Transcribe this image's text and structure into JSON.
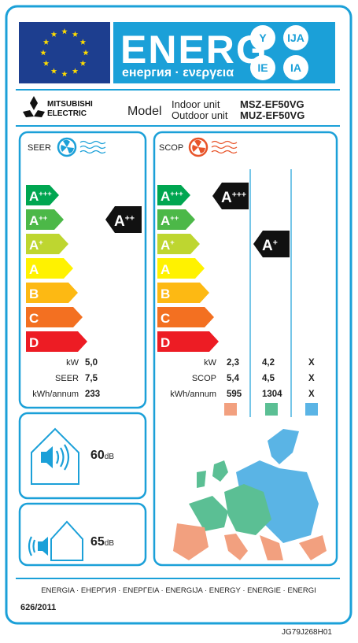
{
  "header": {
    "title": "ENERG",
    "subtitle": "енергия · ενεργεια",
    "badges": [
      "Y",
      "IJA",
      "IE",
      "IA"
    ]
  },
  "brand": {
    "name": [
      "MITSUBISHI",
      "ELECTRIC"
    ]
  },
  "model": {
    "label": "Model",
    "units": [
      {
        "unit": "Indoor unit",
        "code": "MSZ-EF50VG"
      },
      {
        "unit": "Outdoor unit",
        "code": "MUZ-EF50VG"
      }
    ]
  },
  "energy_classes": [
    {
      "letter": "A",
      "plus": "+++"
    },
    {
      "letter": "A",
      "plus": "++"
    },
    {
      "letter": "A",
      "plus": "+"
    },
    {
      "letter": "A",
      "plus": ""
    },
    {
      "letter": "B",
      "plus": ""
    },
    {
      "letter": "C",
      "plus": ""
    },
    {
      "letter": "D",
      "plus": ""
    }
  ],
  "cooling": {
    "label": "SEER",
    "rating": {
      "letter": "A",
      "plus": "++"
    },
    "rows": [
      {
        "label": "kW",
        "value": "5,0"
      },
      {
        "label": "SEER",
        "value": "7,5"
      },
      {
        "label": "kWh/annum",
        "value": "233"
      }
    ]
  },
  "heating": {
    "label": "SCOP",
    "ratings": [
      {
        "letter": "A",
        "plus": "+++"
      },
      {
        "letter": "A",
        "plus": "+"
      }
    ],
    "rows": [
      {
        "label": "kW",
        "values": [
          "2,3",
          "4,2",
          "X"
        ]
      },
      {
        "label": "SCOP",
        "values": [
          "5,4",
          "4,5",
          "X"
        ]
      },
      {
        "label": "kWh/annum",
        "values": [
          "595",
          "1304",
          "X"
        ]
      }
    ]
  },
  "noise": {
    "indoor": {
      "value": "60",
      "unit": "dB"
    },
    "outdoor": {
      "value": "65",
      "unit": "dB"
    }
  },
  "footer": {
    "languages": "ENERGIA · ЕНЕРГИЯ · ΕΝΕΡΓΕΙΑ · ENERGIJA · ENERGY · ENERGIE · ENERGI",
    "regulation": "626/2011",
    "code": "JG79J268H01"
  }
}
